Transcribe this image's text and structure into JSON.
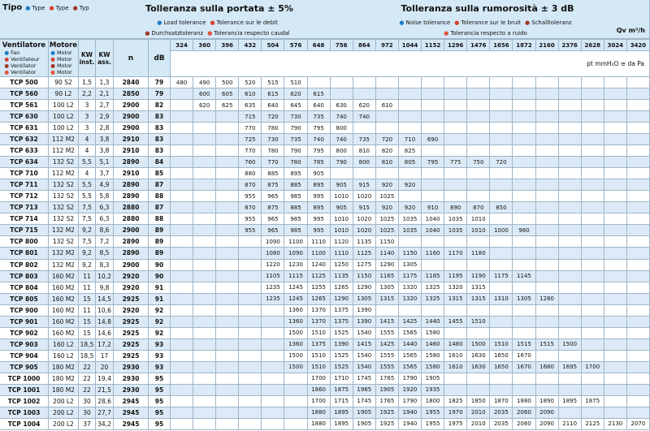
{
  "header": {
    "tipo": "Tipo",
    "tipo_langs": [
      "Type",
      "Type",
      "Typ"
    ],
    "ventilatore": "Ventilatore",
    "ventilatore_langs": [
      "Fan",
      "Ventilateur",
      "Ventilator",
      "Ventilator"
    ],
    "motore": "Motore",
    "motore_langs": [
      "Motor",
      "Motor",
      "Motor",
      "Motor"
    ],
    "flow_tolerance": "Tolleranza sulla portata  ± 5%",
    "flow_tolerance_langs": [
      "Load tolerance",
      "Tolerance sur le debit",
      "Durchsatztoleranz",
      "Tolerancia respecto caudal"
    ],
    "noise_tolerance": "Tolleranza sulla rumorosità  ± 3 dB",
    "noise_tolerance_langs": [
      "Noise tolerance",
      "Tolerance sur le bruit",
      "Schalltoleranz",
      "Tolerancia respecto a ruido"
    ],
    "flow_unit": "Qv m³/h",
    "pressure_unit": "pt mmH₂O ≅ da Pa",
    "columns": [
      "KW inst.",
      "KW ass.",
      "n",
      "dB"
    ]
  },
  "table": {
    "flows": [
      324,
      360,
      396,
      432,
      504,
      576,
      648,
      756,
      864,
      972,
      1044,
      1152,
      1296,
      1476,
      1656,
      1872,
      2160,
      2376,
      2628,
      3024,
      3420
    ],
    "rows": [
      {
        "model": "TCP 500",
        "motor": "90 S2",
        "kw_inst": "1,5",
        "kw_ass": "1,3",
        "rpm": 2840,
        "db": 79,
        "pressures": [
          480,
          490,
          500,
          520,
          515,
          510,
          null,
          null,
          null,
          null,
          null,
          null,
          null,
          null,
          null,
          null,
          null,
          null,
          null,
          null,
          null
        ]
      },
      {
        "model": "TCP 560",
        "motor": "90 L2",
        "kw_inst": "2,2",
        "kw_ass": "2,1",
        "rpm": 2850,
        "db": 79,
        "pressures": [
          null,
          600,
          605,
          610,
          615,
          620,
          615,
          null,
          null,
          null,
          null,
          null,
          null,
          null,
          null,
          null,
          null,
          null,
          null,
          null,
          null
        ]
      },
      {
        "model": "TCP 561",
        "motor": "100 L2",
        "kw_inst": "3",
        "kw_ass": "2,7",
        "rpm": 2900,
        "db": 82,
        "pressures": [
          null,
          620,
          625,
          635,
          640,
          645,
          640,
          630,
          620,
          610,
          null,
          null,
          null,
          null,
          null,
          null,
          null,
          null,
          null,
          null,
          null
        ]
      },
      {
        "model": "TCP 630",
        "motor": "100 L2",
        "kw_inst": "3",
        "kw_ass": "2,9",
        "rpm": 2900,
        "db": 83,
        "pressures": [
          null,
          null,
          null,
          715,
          720,
          730,
          735,
          740,
          740,
          null,
          null,
          null,
          null,
          null,
          null,
          null,
          null,
          null,
          null,
          null,
          null
        ]
      },
      {
        "model": "TCP 631",
        "motor": "100 L2",
        "kw_inst": "3",
        "kw_ass": "2,8",
        "rpm": 2900,
        "db": 83,
        "pressures": [
          null,
          null,
          null,
          770,
          780,
          790,
          795,
          800,
          null,
          null,
          null,
          null,
          null,
          null,
          null,
          null,
          null,
          null,
          null,
          null,
          null
        ]
      },
      {
        "model": "TCP 632",
        "motor": "112 M2",
        "kw_inst": "4",
        "kw_ass": "3,8",
        "rpm": 2910,
        "db": 83,
        "pressures": [
          null,
          null,
          null,
          725,
          730,
          735,
          740,
          740,
          735,
          720,
          710,
          690,
          null,
          null,
          null,
          null,
          null,
          null,
          null,
          null,
          null
        ]
      },
      {
        "model": "TCP 633",
        "motor": "112 M2",
        "kw_inst": "4",
        "kw_ass": "3,8",
        "rpm": 2910,
        "db": 83,
        "pressures": [
          null,
          null,
          null,
          770,
          780,
          790,
          795,
          800,
          810,
          820,
          825,
          null,
          null,
          null,
          null,
          null,
          null,
          null,
          null,
          null,
          null
        ]
      },
      {
        "model": "TCP 634",
        "motor": "132 S2",
        "kw_inst": "5,5",
        "kw_ass": "5,1",
        "rpm": 2890,
        "db": 84,
        "pressures": [
          null,
          null,
          null,
          760,
          770,
          780,
          785,
          790,
          800,
          810,
          805,
          795,
          775,
          750,
          720,
          null,
          null,
          null,
          null,
          null,
          null
        ]
      },
      {
        "model": "TCP 710",
        "motor": "112 M2",
        "kw_inst": "4",
        "kw_ass": "3,7",
        "rpm": 2910,
        "db": 85,
        "pressures": [
          null,
          null,
          null,
          880,
          885,
          895,
          905,
          null,
          null,
          null,
          null,
          null,
          null,
          null,
          null,
          null,
          null,
          null,
          null,
          null,
          null
        ]
      },
      {
        "model": "TCP 711",
        "motor": "132 S2",
        "kw_inst": "5,5",
        "kw_ass": "4,9",
        "rpm": 2890,
        "db": 87,
        "pressures": [
          null,
          null,
          null,
          870,
          875,
          885,
          895,
          905,
          915,
          920,
          920,
          null,
          null,
          null,
          null,
          null,
          null,
          null,
          null,
          null,
          null
        ]
      },
      {
        "model": "TCP 712",
        "motor": "132 S2",
        "kw_inst": "5,5",
        "kw_ass": "5,8",
        "rpm": 2890,
        "db": 88,
        "pressures": [
          null,
          null,
          null,
          955,
          965,
          985,
          995,
          1010,
          1020,
          1025,
          null,
          null,
          null,
          null,
          null,
          null,
          null,
          null,
          null,
          null,
          null
        ]
      },
      {
        "model": "TCP 713",
        "motor": "132 S2",
        "kw_inst": "7,5",
        "kw_ass": "6,3",
        "rpm": 2880,
        "db": 87,
        "pressures": [
          null,
          null,
          null,
          870,
          875,
          885,
          895,
          905,
          915,
          920,
          920,
          910,
          890,
          870,
          850,
          null,
          null,
          null,
          null,
          null,
          null
        ]
      },
      {
        "model": "TCP 714",
        "motor": "132 S2",
        "kw_inst": "7,5",
        "kw_ass": "6,3",
        "rpm": 2880,
        "db": 88,
        "pressures": [
          null,
          null,
          null,
          955,
          965,
          985,
          995,
          1010,
          1020,
          1025,
          1035,
          1040,
          1035,
          1010,
          null,
          null,
          null,
          null,
          null,
          null,
          null
        ]
      },
      {
        "model": "TCP 715",
        "motor": "132 M2",
        "kw_inst": "9,2",
        "kw_ass": "8,6",
        "rpm": 2900,
        "db": 89,
        "pressures": [
          null,
          null,
          null,
          955,
          965,
          985,
          995,
          1010,
          1020,
          1025,
          1035,
          1040,
          1035,
          1010,
          1000,
          980,
          null,
          null,
          null,
          null,
          null
        ]
      },
      {
        "model": "TCP 800",
        "motor": "132 S2",
        "kw_inst": "7,5",
        "kw_ass": "7,2",
        "rpm": 2890,
        "db": 89,
        "pressures": [
          null,
          null,
          null,
          null,
          1090,
          1100,
          1110,
          1120,
          1135,
          1150,
          null,
          null,
          null,
          null,
          null,
          null,
          null,
          null,
          null,
          null,
          null
        ]
      },
      {
        "model": "TCP 801",
        "motor": "132 M2",
        "kw_inst": "9,2",
        "kw_ass": "8,5",
        "rpm": 2890,
        "db": 89,
        "pressures": [
          null,
          null,
          null,
          null,
          1080,
          1090,
          1100,
          1110,
          1125,
          1140,
          1150,
          1160,
          1170,
          1180,
          null,
          null,
          null,
          null,
          null,
          null,
          null
        ]
      },
      {
        "model": "TCP 802",
        "motor": "132 M2",
        "kw_inst": "9,2",
        "kw_ass": "8,3",
        "rpm": 2900,
        "db": 90,
        "pressures": [
          null,
          null,
          null,
          null,
          1220,
          1230,
          1240,
          1250,
          1275,
          1290,
          1305,
          null,
          null,
          null,
          null,
          null,
          null,
          null,
          null,
          null,
          null
        ]
      },
      {
        "model": "TCP 803",
        "motor": "160 M2",
        "kw_inst": "11",
        "kw_ass": "10,2",
        "rpm": 2920,
        "db": 90,
        "pressures": [
          null,
          null,
          null,
          null,
          1105,
          1115,
          1125,
          1135,
          1150,
          1165,
          1175,
          1185,
          1195,
          1190,
          1175,
          1145,
          null,
          null,
          null,
          null,
          null
        ]
      },
      {
        "model": "TCP 804",
        "motor": "160 M2",
        "kw_inst": "11",
        "kw_ass": "9,8",
        "rpm": 2920,
        "db": 91,
        "pressures": [
          null,
          null,
          null,
          null,
          1235,
          1245,
          1255,
          1265,
          1290,
          1305,
          1320,
          1325,
          1320,
          1315,
          null,
          null,
          null,
          null,
          null,
          null,
          null
        ]
      },
      {
        "model": "TCP 805",
        "motor": "160 M2",
        "kw_inst": "15",
        "kw_ass": "14,5",
        "rpm": 2925,
        "db": 91,
        "pressures": [
          null,
          null,
          null,
          null,
          1235,
          1245,
          1265,
          1290,
          1305,
          1315,
          1320,
          1325,
          1315,
          1315,
          1310,
          1305,
          1280,
          null,
          null,
          null,
          null
        ]
      },
      {
        "model": "TCP 900",
        "motor": "160 M2",
        "kw_inst": "11",
        "kw_ass": "10,6",
        "rpm": 2920,
        "db": 92,
        "pressures": [
          null,
          null,
          null,
          null,
          null,
          1360,
          1370,
          1375,
          1390,
          null,
          null,
          null,
          null,
          null,
          null,
          null,
          null,
          null,
          null,
          null,
          null
        ]
      },
      {
        "model": "TCP 901",
        "motor": "160 M2",
        "kw_inst": "15",
        "kw_ass": "14,8",
        "rpm": 2925,
        "db": 92,
        "pressures": [
          null,
          null,
          null,
          null,
          null,
          1360,
          1370,
          1375,
          1390,
          1415,
          1425,
          1440,
          1455,
          1510,
          null,
          null,
          null,
          null,
          null,
          null,
          null
        ]
      },
      {
        "model": "TCP 902",
        "motor": "160 M2",
        "kw_inst": "15",
        "kw_ass": "14,6",
        "rpm": 2925,
        "db": 92,
        "pressures": [
          null,
          null,
          null,
          null,
          null,
          1500,
          1510,
          1525,
          1540,
          1555,
          1565,
          1580,
          null,
          null,
          null,
          null,
          null,
          null,
          null,
          null,
          null
        ]
      },
      {
        "model": "TCP 903",
        "motor": "160 L2",
        "kw_inst": "18,5",
        "kw_ass": "17,2",
        "rpm": 2925,
        "db": 93,
        "pressures": [
          null,
          null,
          null,
          null,
          null,
          1360,
          1375,
          1390,
          1415,
          1425,
          1440,
          1460,
          1480,
          1500,
          1510,
          1515,
          1515,
          1500,
          null,
          null,
          null
        ]
      },
      {
        "model": "TCP 904",
        "motor": "160 L2",
        "kw_inst": "18,5",
        "kw_ass": "17",
        "rpm": 2925,
        "db": 93,
        "pressures": [
          null,
          null,
          null,
          null,
          null,
          1500,
          1510,
          1525,
          1540,
          1555,
          1565,
          1580,
          1610,
          1630,
          1650,
          1670,
          null,
          null,
          null,
          null,
          null
        ]
      },
      {
        "model": "TCP 905",
        "motor": "180 M2",
        "kw_inst": "22",
        "kw_ass": "20",
        "rpm": 2930,
        "db": 93,
        "pressures": [
          null,
          null,
          null,
          null,
          null,
          1500,
          1510,
          1525,
          1540,
          1555,
          1565,
          1580,
          1610,
          1630,
          1650,
          1670,
          1680,
          1695,
          1700,
          null,
          null
        ]
      },
      {
        "model": "TCP 1000",
        "motor": "180 M2",
        "kw_inst": "22",
        "kw_ass": "19,4",
        "rpm": 2930,
        "db": 95,
        "pressures": [
          null,
          null,
          null,
          null,
          null,
          null,
          1700,
          1710,
          1745,
          1765,
          1790,
          1905,
          null,
          null,
          null,
          null,
          null,
          null,
          null,
          null,
          null
        ]
      },
      {
        "model": "TCP 1001",
        "motor": "180 M2",
        "kw_inst": "22",
        "kw_ass": "21,5",
        "rpm": 2930,
        "db": 95,
        "pressures": [
          null,
          null,
          null,
          null,
          null,
          null,
          1860,
          1875,
          1985,
          1905,
          1920,
          1935,
          null,
          null,
          null,
          null,
          null,
          null,
          null,
          null,
          null
        ]
      },
      {
        "model": "TCP 1002",
        "motor": "200 L2",
        "kw_inst": "30",
        "kw_ass": "28,6",
        "rpm": 2945,
        "db": 95,
        "pressures": [
          null,
          null,
          null,
          null,
          null,
          null,
          1700,
          1715,
          1745,
          1765,
          1790,
          1800,
          1825,
          1850,
          1870,
          1880,
          1890,
          1895,
          1875,
          null,
          null
        ]
      },
      {
        "model": "TCP 1003",
        "motor": "200 L2",
        "kw_inst": "30",
        "kw_ass": "27,7",
        "rpm": 2945,
        "db": 95,
        "pressures": [
          null,
          null,
          null,
          null,
          null,
          null,
          1880,
          1895,
          1905,
          1925,
          1940,
          1955,
          1970,
          2010,
          2035,
          2060,
          2090,
          null,
          null,
          null,
          null
        ]
      },
      {
        "model": "TCP 1004",
        "motor": "200 L2",
        "kw_inst": "37",
        "kw_ass": "34,2",
        "rpm": 2945,
        "db": 95,
        "pressures": [
          null,
          null,
          null,
          null,
          null,
          null,
          1880,
          1895,
          1905,
          1925,
          1940,
          1955,
          1975,
          2010,
          2035,
          2060,
          2090,
          2110,
          2125,
          2130,
          2070
        ]
      }
    ]
  }
}
